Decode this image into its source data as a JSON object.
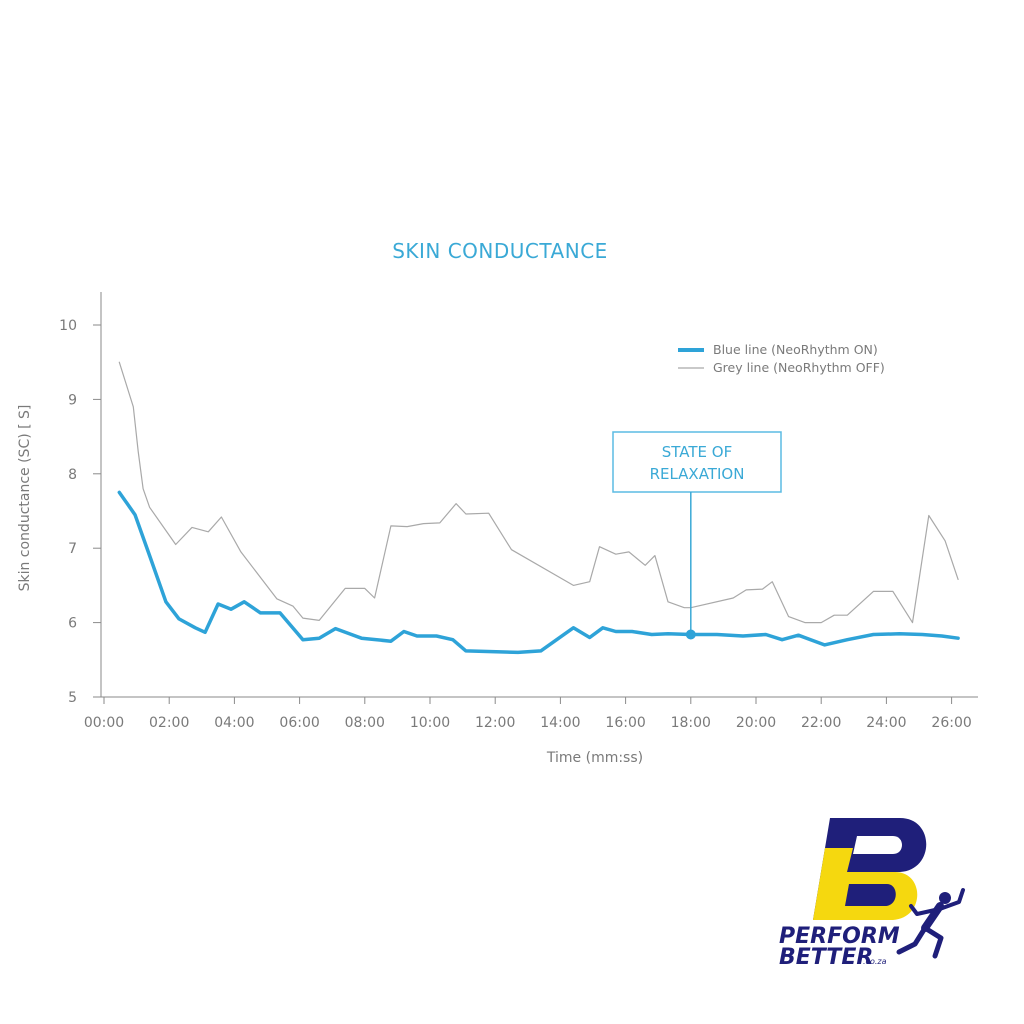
{
  "colors": {
    "blue": "#2ea3d8",
    "grey": "#a9a9a9",
    "title": "#3aa9d6",
    "axis": "#8a8a8a",
    "logo_navy": "#1f1f7a",
    "logo_yellow": "#f5d80f"
  },
  "chart_data": {
    "type": "line",
    "title": "SKIN CONDUCTANCE",
    "xlabel": "Time (mm:ss)",
    "ylabel": "Skin conductance (SC) [ S]",
    "xlim": [
      0,
      26.7
    ],
    "ylim": [
      5,
      10.4
    ],
    "x_ticks": [
      {
        "value": 0,
        "label": "00:00"
      },
      {
        "value": 2,
        "label": "02:00"
      },
      {
        "value": 4,
        "label": "04:00"
      },
      {
        "value": 6,
        "label": "06:00"
      },
      {
        "value": 8,
        "label": "08:00"
      },
      {
        "value": 10,
        "label": "10:00"
      },
      {
        "value": 12,
        "label": "12:00"
      },
      {
        "value": 14,
        "label": "14:00"
      },
      {
        "value": 16,
        "label": "16:00"
      },
      {
        "value": 18,
        "label": "18:00"
      },
      {
        "value": 20,
        "label": "20:00"
      },
      {
        "value": 22,
        "label": "22:00"
      },
      {
        "value": 24,
        "label": "24:00"
      },
      {
        "value": 26,
        "label": "26:00"
      }
    ],
    "y_ticks": [
      {
        "value": 5,
        "label": "5"
      },
      {
        "value": 6,
        "label": "6"
      },
      {
        "value": 7,
        "label": "7"
      },
      {
        "value": 8,
        "label": "8"
      },
      {
        "value": 9,
        "label": "9"
      },
      {
        "value": 10,
        "label": "10"
      }
    ],
    "grid": false,
    "legend_position": "top-right",
    "series": [
      {
        "name": "Blue line (NeoRhythm ON)",
        "color": "#2ea3d8",
        "x": [
          0.47,
          0.95,
          1.4,
          1.9,
          2.3,
          2.8,
          3.1,
          3.5,
          3.9,
          4.3,
          4.8,
          5.4,
          6.1,
          6.6,
          7.1,
          7.9,
          8.8,
          9.2,
          9.6,
          10.2,
          10.7,
          11.1,
          11.9,
          12.7,
          13.4,
          14.4,
          14.9,
          15.3,
          15.7,
          16.2,
          16.8,
          17.3,
          18.0,
          18.8,
          19.6,
          20.3,
          20.8,
          21.3,
          22.1,
          22.8,
          23.6,
          24.4,
          25.1,
          25.7,
          26.2
        ],
        "y": [
          7.75,
          7.45,
          6.9,
          6.28,
          6.05,
          5.93,
          5.87,
          6.25,
          6.18,
          6.28,
          6.13,
          6.13,
          5.77,
          5.79,
          5.92,
          5.79,
          5.75,
          5.88,
          5.82,
          5.82,
          5.77,
          5.62,
          5.61,
          5.6,
          5.62,
          5.93,
          5.8,
          5.93,
          5.88,
          5.88,
          5.84,
          5.85,
          5.84,
          5.84,
          5.82,
          5.84,
          5.77,
          5.83,
          5.7,
          5.77,
          5.84,
          5.85,
          5.84,
          5.82,
          5.79
        ]
      },
      {
        "name": "Grey line (NeoRhythm OFF)",
        "color": "#a9a9a9",
        "x": [
          0.47,
          0.9,
          1.05,
          1.2,
          1.4,
          2.2,
          2.7,
          3.2,
          3.6,
          4.2,
          5.3,
          5.8,
          6.1,
          6.6,
          7.4,
          8.0,
          8.3,
          8.8,
          9.3,
          9.8,
          10.3,
          10.8,
          11.1,
          11.8,
          12.5,
          14.4,
          14.9,
          15.2,
          15.7,
          16.1,
          16.6,
          16.9,
          17.3,
          17.8,
          18.0,
          19.3,
          19.7,
          20.2,
          20.5,
          21.0,
          21.5,
          22.0,
          22.4,
          22.8,
          23.6,
          24.2,
          24.8,
          25.3,
          25.8,
          26.2
        ],
        "y": [
          9.5,
          8.9,
          8.3,
          7.8,
          7.55,
          7.05,
          7.28,
          7.22,
          7.42,
          6.95,
          6.32,
          6.22,
          6.06,
          6.03,
          6.46,
          6.46,
          6.33,
          7.3,
          7.29,
          7.33,
          7.34,
          7.6,
          7.46,
          7.47,
          6.98,
          6.5,
          6.55,
          7.02,
          6.92,
          6.95,
          6.77,
          6.9,
          6.28,
          6.2,
          6.2,
          6.33,
          6.44,
          6.45,
          6.55,
          6.08,
          6.0,
          6.0,
          6.1,
          6.1,
          6.42,
          6.42,
          6.0,
          7.44,
          7.1,
          6.58
        ]
      }
    ],
    "annotations": [
      {
        "text_lines": [
          "STATE OF",
          "RELAXATION"
        ],
        "x": 18.0,
        "y": 5.84
      }
    ]
  },
  "logo": {
    "line1": "PERFORM",
    "line2": "BETTER",
    "suffix": ".co.za",
    "icon": "runner-icon"
  }
}
